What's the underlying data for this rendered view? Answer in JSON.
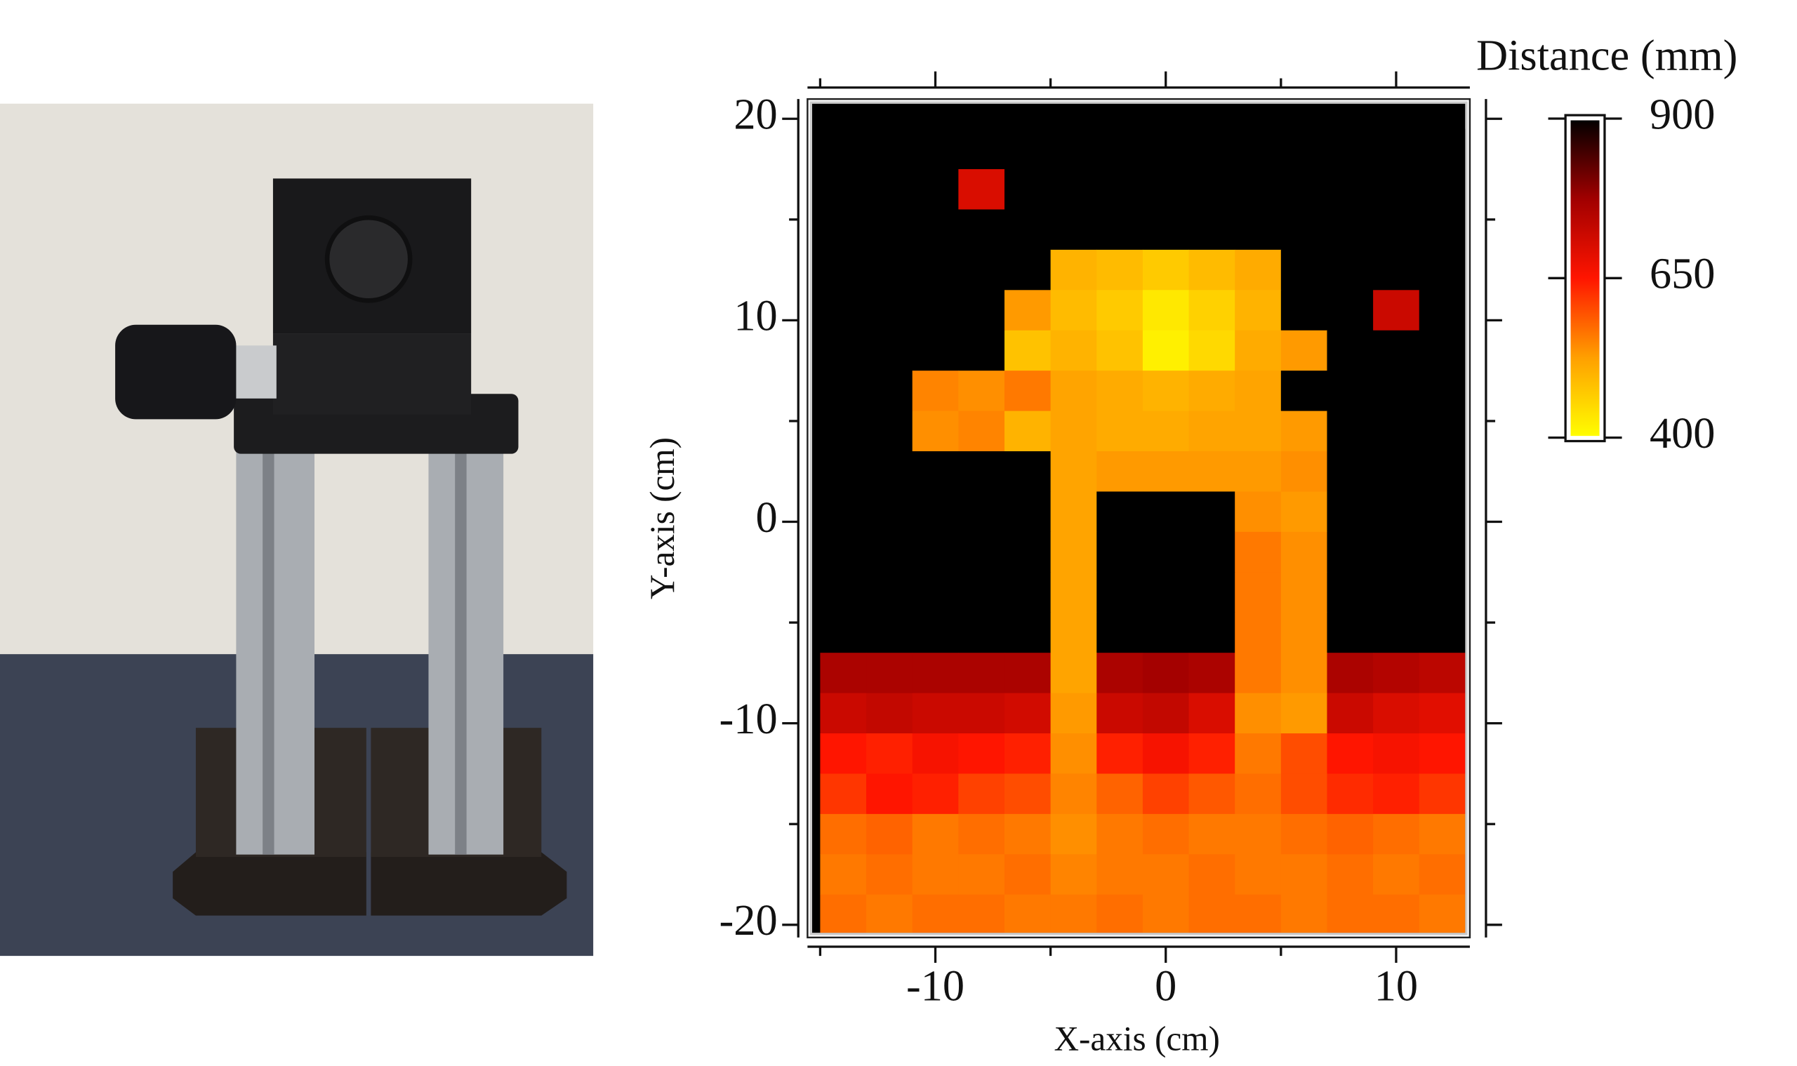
{
  "chart_data": {
    "type": "heatmap",
    "xlabel": "X-axis (cm)",
    "ylabel": "Y-axis (cm)",
    "colorbar_title": "Distance (mm)",
    "xlim": [
      -15.35,
      13
    ],
    "ylim": [
      -20.4,
      20.75
    ],
    "xticks": [
      -10,
      0,
      10
    ],
    "xminor": [
      -15,
      -5,
      5
    ],
    "yticks": [
      -20,
      -10,
      0,
      10,
      20
    ],
    "yminor": [
      -15,
      -5,
      5,
      15
    ],
    "zlim": [
      400,
      900
    ],
    "zticks": [
      400,
      650,
      900
    ],
    "colorscale": [
      "#ffff00",
      "#ffa000",
      "#ff1500",
      "#a00000",
      "#000000"
    ],
    "background": "#000000",
    "xbins": [
      -15,
      -13,
      -11,
      -9,
      -7,
      -5,
      -3,
      -1,
      1,
      3,
      5,
      7,
      9,
      11,
      13
    ],
    "ybins": [
      19.5,
      17.5,
      15.5,
      13.5,
      11.5,
      9.5,
      7.5,
      5.5,
      3.5,
      1.5,
      -0.5,
      -2.5,
      -4.5,
      -6.5,
      -8.5,
      -10.5,
      -12.5,
      -14.5,
      -16.5,
      -18.5,
      -20.5
    ],
    "z": [
      [
        900,
        900,
        900,
        900,
        900,
        900,
        900,
        900,
        900,
        900,
        900,
        900,
        900,
        900
      ],
      [
        900,
        900,
        900,
        700,
        900,
        900,
        900,
        900,
        900,
        900,
        900,
        900,
        900,
        900
      ],
      [
        900,
        900,
        900,
        900,
        900,
        900,
        900,
        900,
        900,
        900,
        900,
        900,
        900,
        900
      ],
      [
        900,
        900,
        900,
        900,
        900,
        500,
        490,
        470,
        490,
        510,
        900,
        900,
        900,
        900
      ],
      [
        900,
        900,
        900,
        900,
        530,
        490,
        470,
        430,
        460,
        500,
        900,
        900,
        720,
        900
      ],
      [
        900,
        900,
        900,
        900,
        480,
        500,
        480,
        420,
        450,
        510,
        530,
        900,
        900,
        900
      ],
      [
        900,
        900,
        550,
        540,
        560,
        520,
        510,
        500,
        510,
        520,
        900,
        900,
        900,
        900
      ],
      [
        900,
        900,
        540,
        550,
        500,
        520,
        510,
        510,
        520,
        520,
        530,
        900,
        900,
        900
      ],
      [
        900,
        900,
        900,
        900,
        900,
        520,
        530,
        530,
        530,
        530,
        540,
        900,
        900,
        900
      ],
      [
        900,
        900,
        900,
        900,
        900,
        520,
        900,
        900,
        900,
        540,
        530,
        900,
        900,
        900
      ],
      [
        900,
        900,
        900,
        900,
        900,
        520,
        900,
        900,
        900,
        560,
        540,
        900,
        900,
        900
      ],
      [
        900,
        900,
        900,
        900,
        900,
        520,
        900,
        900,
        900,
        560,
        540,
        900,
        900,
        900
      ],
      [
        900,
        900,
        900,
        900,
        900,
        520,
        900,
        900,
        900,
        560,
        540,
        900,
        900,
        900
      ],
      [
        760,
        760,
        760,
        760,
        760,
        520,
        760,
        770,
        760,
        560,
        540,
        760,
        750,
        740
      ],
      [
        720,
        730,
        720,
        720,
        710,
        530,
        720,
        730,
        700,
        540,
        530,
        720,
        700,
        690
      ],
      [
        650,
        640,
        660,
        650,
        640,
        540,
        640,
        660,
        640,
        560,
        600,
        650,
        660,
        650
      ],
      [
        620,
        650,
        640,
        610,
        600,
        550,
        580,
        610,
        590,
        570,
        600,
        630,
        640,
        620
      ],
      [
        570,
        580,
        560,
        570,
        560,
        540,
        560,
        570,
        560,
        560,
        570,
        580,
        570,
        560
      ],
      [
        560,
        570,
        560,
        560,
        570,
        550,
        560,
        560,
        570,
        560,
        560,
        570,
        560,
        570
      ],
      [
        570,
        560,
        570,
        570,
        560,
        560,
        570,
        560,
        570,
        570,
        560,
        570,
        570,
        560
      ]
    ]
  }
}
